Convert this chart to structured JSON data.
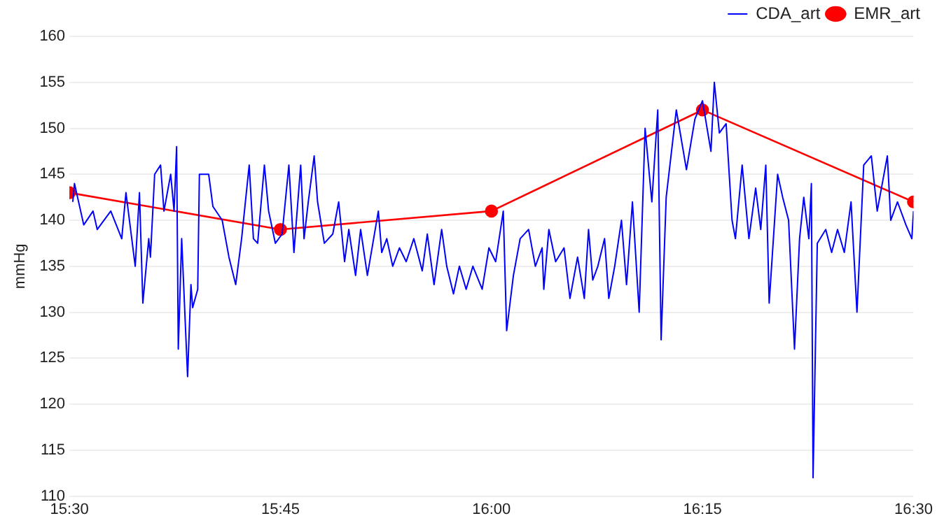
{
  "chart_data": {
    "type": "line",
    "ylabel": "mmHg",
    "xlim": [
      15.5,
      16.5
    ],
    "xticks": [
      {
        "value": 15.5,
        "label": "15:30"
      },
      {
        "value": 15.75,
        "label": "15:45"
      },
      {
        "value": 16,
        "label": "16:00"
      },
      {
        "value": 16.25,
        "label": "16:15"
      },
      {
        "value": 16.5,
        "label": "16:30"
      }
    ],
    "ylim": [
      110,
      160
    ],
    "yticks": [
      110,
      115,
      120,
      125,
      130,
      135,
      140,
      145,
      150,
      155,
      160
    ],
    "grid": "y",
    "legend": "top right",
    "series": [
      {
        "name": "CDA_art",
        "color": "#0000ff",
        "marker": "none",
        "x": [
          15.504,
          15.506,
          15.517,
          15.528,
          15.533,
          15.549,
          15.562,
          15.567,
          15.578,
          15.583,
          15.587,
          15.594,
          15.596,
          15.601,
          15.608,
          15.612,
          15.62,
          15.624,
          15.627,
          15.629,
          15.633,
          15.64,
          15.644,
          15.646,
          15.652,
          15.654,
          15.665,
          15.67,
          15.681,
          15.689,
          15.697,
          15.704,
          15.713,
          15.718,
          15.723,
          15.731,
          15.736,
          15.744,
          15.752,
          15.76,
          15.766,
          15.774,
          15.778,
          15.783,
          15.79,
          15.794,
          15.802,
          15.812,
          15.819,
          15.826,
          15.831,
          15.839,
          15.845,
          15.853,
          15.866,
          15.87,
          15.876,
          15.883,
          15.891,
          15.899,
          15.908,
          15.918,
          15.924,
          15.932,
          15.941,
          15.947,
          15.955,
          15.962,
          15.97,
          15.978,
          15.989,
          15.997,
          16.005,
          16.014,
          16.018,
          16.026,
          16.034,
          16.044,
          16.052,
          16.06,
          16.062,
          16.068,
          16.076,
          16.086,
          16.093,
          16.102,
          16.11,
          16.115,
          16.12,
          16.126,
          16.134,
          16.139,
          16.146,
          16.154,
          16.16,
          16.167,
          16.175,
          16.182,
          16.19,
          16.197,
          16.201,
          16.207,
          16.219,
          16.231,
          16.241,
          16.25,
          16.26,
          16.264,
          16.27,
          16.278,
          16.285,
          16.289,
          16.297,
          16.305,
          16.313,
          16.319,
          16.325,
          16.329,
          16.339,
          16.345,
          16.352,
          16.359,
          16.365,
          16.37,
          16.376,
          16.379,
          16.381,
          16.386,
          16.396,
          16.403,
          16.41,
          16.418,
          16.426,
          16.433,
          16.441,
          16.45,
          16.457,
          16.469,
          16.473,
          16.481,
          16.491,
          16.498,
          16.5
        ],
        "values": [
          142,
          144,
          139.5,
          141,
          139,
          141,
          138,
          143,
          135,
          143,
          131,
          138,
          136,
          145,
          146,
          141,
          145,
          141,
          148,
          126,
          138,
          123,
          133,
          130.5,
          132.5,
          145,
          145,
          141.5,
          140,
          136,
          133,
          138,
          146,
          138,
          137.5,
          146,
          141,
          137.5,
          138.5,
          146,
          136.5,
          146,
          138,
          142,
          147,
          142,
          137.5,
          138.5,
          142,
          135.5,
          139,
          134,
          139,
          134,
          141,
          136.5,
          138,
          135,
          137,
          135.5,
          138,
          134.5,
          138.5,
          133,
          139,
          135,
          132,
          135,
          132.5,
          135,
          132.5,
          137,
          135.5,
          141,
          128,
          134,
          138,
          139,
          135,
          137,
          132.5,
          139,
          135.5,
          137,
          131.5,
          136,
          131.5,
          139,
          133.5,
          135,
          138,
          131.5,
          135,
          140,
          133,
          142,
          130,
          150,
          142,
          152,
          127,
          142.5,
          152,
          145.5,
          151,
          153,
          147.5,
          155,
          149.5,
          150.5,
          140,
          138,
          146,
          138,
          143.5,
          139,
          146,
          131,
          145,
          142.5,
          140,
          126,
          138,
          142.5,
          138,
          144,
          112,
          137.5,
          139,
          136.5,
          139,
          136.5,
          142,
          130,
          146,
          147,
          141,
          147,
          140,
          142,
          139.5,
          138,
          141
        ]
      },
      {
        "name": "EMR_art",
        "color": "#ff0000",
        "marker": "circle",
        "x": [
          15.5,
          15.75,
          16,
          16.25,
          16.5
        ],
        "values": [
          143,
          139,
          141,
          152,
          142
        ]
      }
    ]
  }
}
